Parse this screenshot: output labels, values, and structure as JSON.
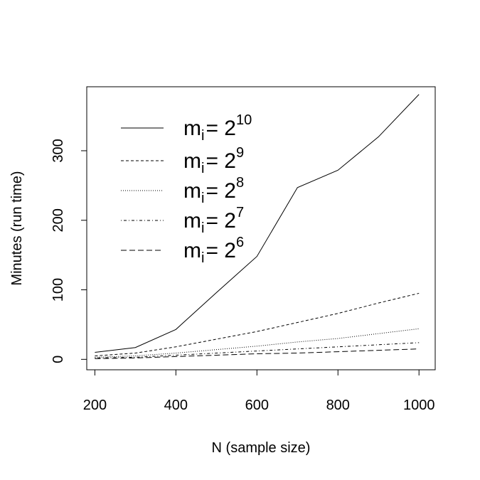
{
  "chart_data": {
    "type": "line",
    "title": "",
    "xlabel": "N (sample size)",
    "ylabel": "Minutes (run time)",
    "x": [
      200,
      300,
      400,
      500,
      600,
      700,
      800,
      900,
      1000
    ],
    "xlim": [
      180,
      1040
    ],
    "ylim": [
      -15,
      392
    ],
    "xticks": [
      "200",
      "400",
      "600",
      "800",
      "1000"
    ],
    "yticks": [
      "0",
      "100",
      "200",
      "300"
    ],
    "grid": false,
    "legend_position": "top-left",
    "series": [
      {
        "name": "m_i = 2^10",
        "legend_base": "m",
        "legend_sub": "i",
        "legend_eq": "= 2",
        "legend_exp": "10",
        "dash": "solid",
        "values": [
          10,
          17,
          43,
          96,
          148,
          247,
          272,
          320,
          381
        ]
      },
      {
        "name": "m_i = 2^9",
        "legend_base": "m",
        "legend_sub": "i",
        "legend_eq": "= 2",
        "legend_exp": "9",
        "dash": "dashed",
        "values": [
          5,
          9,
          18,
          29,
          40,
          53,
          66,
          81,
          95
        ]
      },
      {
        "name": "m_i = 2^8",
        "legend_base": "m",
        "legend_sub": "i",
        "legend_eq": "= 2",
        "legend_exp": "8",
        "dash": "dotted",
        "values": [
          3,
          5,
          9,
          14,
          19,
          25,
          30,
          37,
          44
        ]
      },
      {
        "name": "m_i = 2^7",
        "legend_base": "m",
        "legend_sub": "i",
        "legend_eq": "= 2",
        "legend_exp": "7",
        "dash": "dotdash",
        "values": [
          2,
          3,
          6,
          9,
          12,
          15,
          18,
          21,
          24
        ]
      },
      {
        "name": "m_i = 2^6",
        "legend_base": "m",
        "legend_sub": "i",
        "legend_eq": "= 2",
        "legend_exp": "6",
        "dash": "longdash",
        "values": [
          1,
          2,
          4,
          6,
          8,
          9,
          11,
          13,
          15
        ]
      }
    ]
  }
}
